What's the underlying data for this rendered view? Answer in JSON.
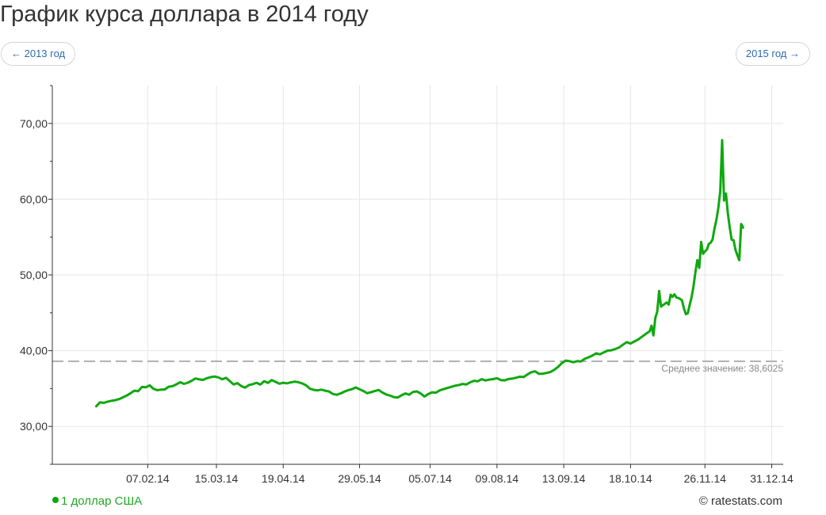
{
  "header": {
    "title": "График курса доллара в 2014 году",
    "prev_label": "← 2013 год",
    "next_label": "2015 год →"
  },
  "legend": {
    "label": "1 доллар США"
  },
  "footer": {
    "copyright": "© ratestats.com"
  },
  "colors": {
    "line": "#0fa80f",
    "average": "#999999",
    "grid": "#e6e6e6",
    "axis": "#333333"
  },
  "chart_data": {
    "type": "line",
    "ylim": [
      25,
      75
    ],
    "yticks": [
      30,
      40,
      50,
      60,
      70
    ],
    "ytick_labels": [
      "30,00",
      "40,00",
      "50,00",
      "60,00",
      "70,00"
    ],
    "xlim": [
      -13,
      370
    ],
    "xticks": [
      {
        "label": "07.02.14",
        "day": 37
      },
      {
        "label": "15.03.14",
        "day": 73
      },
      {
        "label": "19.04.14",
        "day": 108
      },
      {
        "label": "29.05.14",
        "day": 148
      },
      {
        "label": "05.07.14",
        "day": 185
      },
      {
        "label": "09.08.14",
        "day": 220
      },
      {
        "label": "13.09.14",
        "day": 255
      },
      {
        "label": "18.10.14",
        "day": 290
      },
      {
        "label": "26.11.14",
        "day": 329
      },
      {
        "label": "31.12.14",
        "day": 364
      }
    ],
    "average": {
      "value": 38.6025,
      "label": "Среднее значение: 38,6025"
    },
    "grid": true,
    "legend_position": "bottom-left",
    "series": [
      {
        "name": "1 доллар США",
        "points": [
          [
            10,
            32.66
          ],
          [
            12,
            33.19
          ],
          [
            14,
            33.11
          ],
          [
            16,
            33.27
          ],
          [
            18,
            33.39
          ],
          [
            20,
            33.46
          ],
          [
            22,
            33.61
          ],
          [
            24,
            33.84
          ],
          [
            26,
            34.08
          ],
          [
            28,
            34.38
          ],
          [
            30,
            34.72
          ],
          [
            32,
            34.65
          ],
          [
            34,
            35.21
          ],
          [
            36,
            35.17
          ],
          [
            38,
            35.42
          ],
          [
            40,
            34.97
          ],
          [
            42,
            34.78
          ],
          [
            44,
            34.86
          ],
          [
            46,
            34.89
          ],
          [
            48,
            35.24
          ],
          [
            50,
            35.31
          ],
          [
            52,
            35.55
          ],
          [
            54,
            35.84
          ],
          [
            56,
            35.62
          ],
          [
            58,
            35.77
          ],
          [
            60,
            36.02
          ],
          [
            62,
            36.33
          ],
          [
            64,
            36.21
          ],
          [
            66,
            36.14
          ],
          [
            68,
            36.37
          ],
          [
            70,
            36.51
          ],
          [
            72,
            36.59
          ],
          [
            74,
            36.48
          ],
          [
            76,
            36.22
          ],
          [
            78,
            36.41
          ],
          [
            80,
            35.98
          ],
          [
            82,
            35.54
          ],
          [
            84,
            35.71
          ],
          [
            86,
            35.33
          ],
          [
            88,
            35.12
          ],
          [
            90,
            35.46
          ],
          [
            92,
            35.58
          ],
          [
            94,
            35.76
          ],
          [
            96,
            35.52
          ],
          [
            98,
            35.97
          ],
          [
            100,
            35.74
          ],
          [
            102,
            36.12
          ],
          [
            104,
            35.88
          ],
          [
            106,
            35.64
          ],
          [
            108,
            35.76
          ],
          [
            110,
            35.69
          ],
          [
            112,
            35.82
          ],
          [
            114,
            35.91
          ],
          [
            116,
            35.84
          ],
          [
            118,
            35.67
          ],
          [
            120,
            35.42
          ],
          [
            122,
            34.98
          ],
          [
            124,
            34.82
          ],
          [
            126,
            34.76
          ],
          [
            128,
            34.85
          ],
          [
            130,
            34.72
          ],
          [
            132,
            34.61
          ],
          [
            134,
            34.29
          ],
          [
            136,
            34.17
          ],
          [
            138,
            34.35
          ],
          [
            140,
            34.58
          ],
          [
            142,
            34.78
          ],
          [
            144,
            34.92
          ],
          [
            146,
            35.15
          ],
          [
            148,
            34.91
          ],
          [
            150,
            34.68
          ],
          [
            152,
            34.38
          ],
          [
            154,
            34.52
          ],
          [
            156,
            34.67
          ],
          [
            158,
            34.81
          ],
          [
            160,
            34.47
          ],
          [
            162,
            34.22
          ],
          [
            164,
            34.07
          ],
          [
            166,
            33.86
          ],
          [
            168,
            33.82
          ],
          [
            170,
            34.11
          ],
          [
            172,
            34.35
          ],
          [
            174,
            34.18
          ],
          [
            176,
            34.55
          ],
          [
            178,
            34.62
          ],
          [
            180,
            34.35
          ],
          [
            182,
            33.94
          ],
          [
            184,
            34.27
          ],
          [
            186,
            34.51
          ],
          [
            188,
            34.46
          ],
          [
            190,
            34.76
          ],
          [
            192,
            34.92
          ],
          [
            194,
            35.07
          ],
          [
            196,
            35.22
          ],
          [
            198,
            35.38
          ],
          [
            200,
            35.46
          ],
          [
            202,
            35.61
          ],
          [
            204,
            35.54
          ],
          [
            206,
            35.83
          ],
          [
            208,
            36.02
          ],
          [
            210,
            35.96
          ],
          [
            212,
            36.23
          ],
          [
            214,
            36.07
          ],
          [
            216,
            36.18
          ],
          [
            218,
            36.24
          ],
          [
            220,
            36.37
          ],
          [
            222,
            36.12
          ],
          [
            224,
            36.08
          ],
          [
            226,
            36.25
          ],
          [
            228,
            36.31
          ],
          [
            230,
            36.43
          ],
          [
            232,
            36.56
          ],
          [
            234,
            36.52
          ],
          [
            236,
            36.86
          ],
          [
            238,
            37.15
          ],
          [
            240,
            37.28
          ],
          [
            242,
            36.94
          ],
          [
            244,
            36.97
          ],
          [
            246,
            37.06
          ],
          [
            248,
            37.18
          ],
          [
            250,
            37.47
          ],
          [
            252,
            37.85
          ],
          [
            254,
            38.36
          ],
          [
            256,
            38.69
          ],
          [
            258,
            38.62
          ],
          [
            260,
            38.47
          ],
          [
            262,
            38.62
          ],
          [
            264,
            38.58
          ],
          [
            266,
            38.92
          ],
          [
            268,
            39.12
          ],
          [
            270,
            39.35
          ],
          [
            272,
            39.66
          ],
          [
            274,
            39.52
          ],
          [
            276,
            39.78
          ],
          [
            278,
            40.01
          ],
          [
            280,
            40.05
          ],
          [
            282,
            40.22
          ],
          [
            284,
            40.42
          ],
          [
            286,
            40.78
          ],
          [
            288,
            41.13
          ],
          [
            290,
            40.94
          ],
          [
            292,
            41.21
          ],
          [
            294,
            41.48
          ],
          [
            296,
            41.85
          ],
          [
            298,
            42.22
          ],
          [
            300,
            42.54
          ],
          [
            301,
            43.31
          ],
          [
            302,
            42.01
          ],
          [
            303,
            44.34
          ],
          [
            304,
            45.15
          ],
          [
            305,
            47.88
          ],
          [
            306,
            45.82
          ],
          [
            307,
            46.02
          ],
          [
            308,
            46.18
          ],
          [
            309,
            46.36
          ],
          [
            310,
            46.09
          ],
          [
            311,
            47.38
          ],
          [
            312,
            47.11
          ],
          [
            313,
            47.44
          ],
          [
            314,
            47.04
          ],
          [
            315,
            46.96
          ],
          [
            316,
            46.84
          ],
          [
            317,
            46.62
          ],
          [
            318,
            45.58
          ],
          [
            319,
            44.82
          ],
          [
            320,
            44.93
          ],
          [
            321,
            46.02
          ],
          [
            322,
            47.05
          ],
          [
            323,
            48.52
          ],
          [
            324,
            50.41
          ],
          [
            325,
            51.96
          ],
          [
            326,
            50.92
          ],
          [
            327,
            54.35
          ],
          [
            328,
            52.79
          ],
          [
            329,
            53.12
          ],
          [
            330,
            53.34
          ],
          [
            331,
            54.08
          ],
          [
            332,
            54.26
          ],
          [
            333,
            54.68
          ],
          [
            334,
            56.12
          ],
          [
            335,
            57.24
          ],
          [
            336,
            58.87
          ],
          [
            337,
            61.03
          ],
          [
            338,
            67.79
          ],
          [
            339,
            59.82
          ],
          [
            340,
            60.74
          ],
          [
            341,
            58.12
          ],
          [
            342,
            56.23
          ],
          [
            343,
            54.65
          ],
          [
            344,
            54.58
          ],
          [
            345,
            53.32
          ],
          [
            346,
            52.59
          ],
          [
            347,
            51.96
          ],
          [
            348,
            56.73
          ],
          [
            349,
            56.26
          ]
        ]
      }
    ]
  }
}
